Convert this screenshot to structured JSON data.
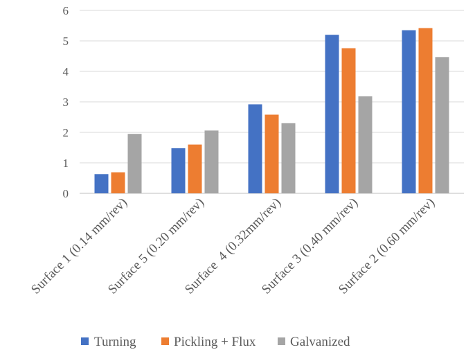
{
  "chart_data": {
    "type": "bar",
    "categories": [
      "Surface 1 (0.14 mm/rev)",
      "Surface 5 (0.20 mm/rev)",
      "Surface  4 (0.32mm/rev)",
      "Surface 3 (0.40 mm/rev)",
      "Surface 2 (0.60 mm/rev)"
    ],
    "series": [
      {
        "name": "Turning",
        "color": "#4472C4",
        "values": [
          0.63,
          1.48,
          2.92,
          5.2,
          5.35
        ]
      },
      {
        "name": "Pickling + Flux",
        "color": "#ED7D31",
        "values": [
          0.69,
          1.6,
          2.58,
          4.76,
          5.42
        ]
      },
      {
        "name": "Galvanized",
        "color": "#A5A5A5",
        "values": [
          1.95,
          2.06,
          2.3,
          3.18,
          4.47
        ]
      }
    ],
    "ylim": [
      0,
      6
    ],
    "yticks": [
      "0",
      "1",
      "2",
      "3",
      "4",
      "5",
      "6"
    ],
    "grid": true,
    "legend_position": "bottom",
    "title": "",
    "xlabel": "",
    "ylabel": ""
  }
}
